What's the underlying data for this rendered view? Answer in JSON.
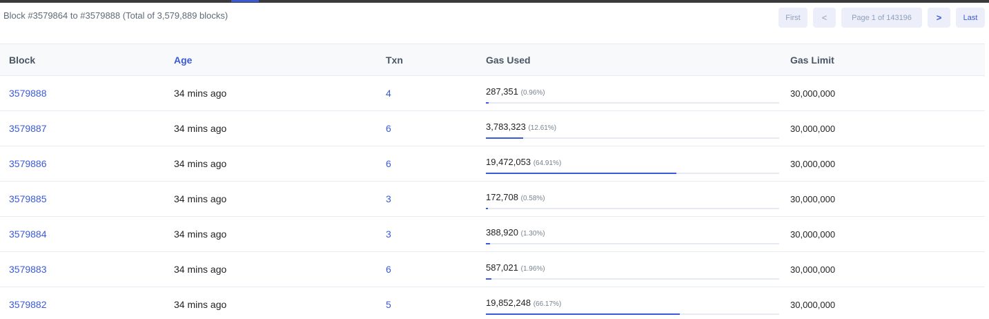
{
  "summary": "Block #3579864 to #3579888 (Total of 3,579,889 blocks)",
  "pager": {
    "first": "First",
    "prev": "<",
    "info": "Page 1 of 143196",
    "next": ">",
    "last": "Last"
  },
  "columns": {
    "block": "Block",
    "age": "Age",
    "txn": "Txn",
    "gas_used": "Gas Used",
    "gas_limit": "Gas Limit"
  },
  "rows": [
    {
      "block": "3579888",
      "age": "34 mins ago",
      "txn": "4",
      "gas": "287,351",
      "pct": "(0.96%)",
      "fill": 0.0096,
      "limit": "30,000,000"
    },
    {
      "block": "3579887",
      "age": "34 mins ago",
      "txn": "6",
      "gas": "3,783,323",
      "pct": "(12.61%)",
      "fill": 0.1261,
      "limit": "30,000,000"
    },
    {
      "block": "3579886",
      "age": "34 mins ago",
      "txn": "6",
      "gas": "19,472,053",
      "pct": "(64.91%)",
      "fill": 0.6491,
      "limit": "30,000,000"
    },
    {
      "block": "3579885",
      "age": "34 mins ago",
      "txn": "3",
      "gas": "172,708",
      "pct": "(0.58%)",
      "fill": 0.0058,
      "limit": "30,000,000"
    },
    {
      "block": "3579884",
      "age": "34 mins ago",
      "txn": "3",
      "gas": "388,920",
      "pct": "(1.30%)",
      "fill": 0.013,
      "limit": "30,000,000"
    },
    {
      "block": "3579883",
      "age": "34 mins ago",
      "txn": "6",
      "gas": "587,021",
      "pct": "(1.96%)",
      "fill": 0.0196,
      "limit": "30,000,000"
    },
    {
      "block": "3579882",
      "age": "34 mins ago",
      "txn": "5",
      "gas": "19,852,248",
      "pct": "(66.17%)",
      "fill": 0.6617,
      "limit": "30,000,000"
    }
  ],
  "colors": {
    "accent": "#3a59d8",
    "header_bg": "#f8f9fb",
    "border": "#e7eaf3"
  }
}
